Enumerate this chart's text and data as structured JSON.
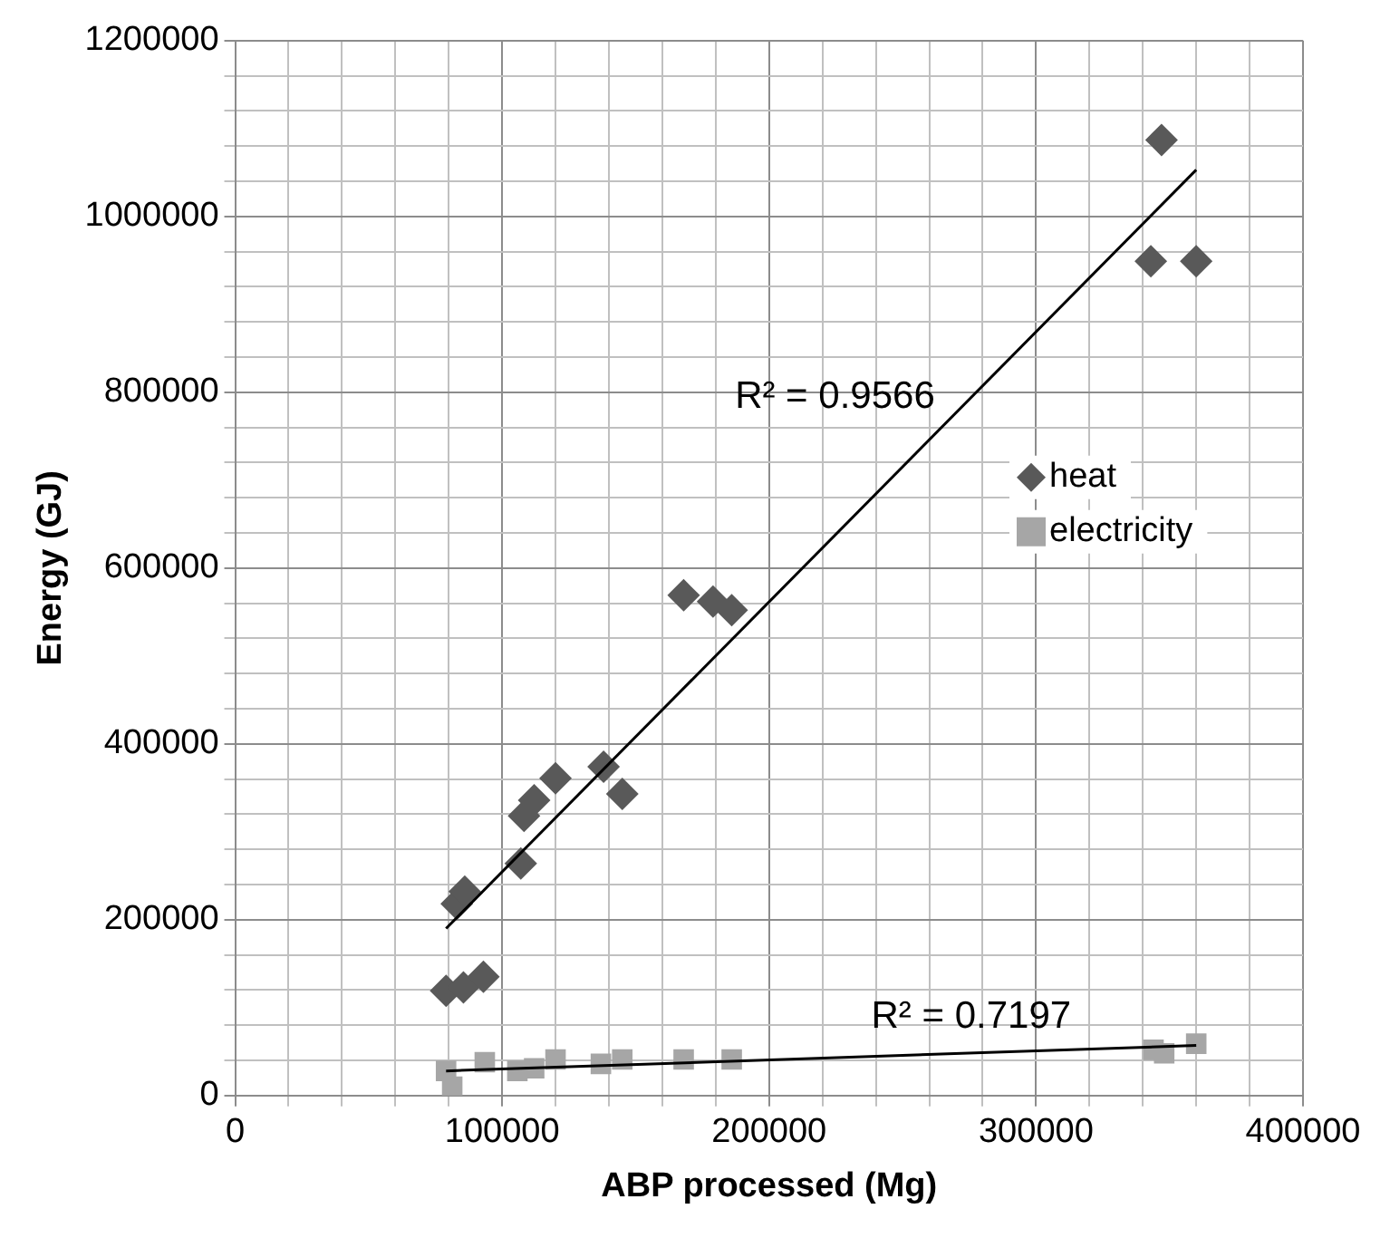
{
  "chart_data": {
    "type": "scatter",
    "xlabel": "ABP processed (Mg)",
    "ylabel": "Energy (GJ)",
    "xlim": [
      0,
      400000
    ],
    "xticks": [
      0,
      100000,
      200000,
      300000,
      400000
    ],
    "ylim": [
      0,
      1200000
    ],
    "yticks": [
      0,
      200000,
      400000,
      600000,
      800000,
      1000000,
      1200000
    ],
    "grid": true,
    "legend": "right",
    "series": [
      {
        "name": "heat",
        "color": "#595959",
        "marker": "diamond",
        "x": [
          79000,
          85500,
          93000,
          83000,
          86000,
          107000,
          108200,
          112000,
          120000,
          138000,
          145000,
          168000,
          179000,
          186000,
          347000,
          343000,
          360000
        ],
        "values": [
          119000,
          123000,
          135000,
          218000,
          232000,
          264000,
          318000,
          336000,
          361000,
          374000,
          343000,
          569000,
          562000,
          552000,
          1087000,
          949000,
          949000
        ]
      },
      {
        "name": "electricity",
        "color": "#a6a6a6",
        "marker": "square",
        "x": [
          79000,
          81300,
          93500,
          105700,
          112000,
          120000,
          137000,
          145000,
          168000,
          186000,
          344000,
          348000,
          360000
        ],
        "values": [
          28000,
          10000,
          38000,
          28000,
          31000,
          41000,
          36000,
          41000,
          41000,
          41000,
          52000,
          48000,
          59000
        ]
      },
      {
        "type": "line",
        "color": "#000000",
        "marker": "none",
        "x": [
          79000,
          360000
        ],
        "values": [
          190000,
          1053000
        ]
      },
      {
        "type": "line",
        "color": "#000000",
        "marker": "none",
        "x": [
          79000,
          360000
        ],
        "values": [
          28000,
          57000
        ]
      }
    ],
    "annotations": [
      "R² = 0.9566",
      "R² = 0.7197"
    ]
  }
}
